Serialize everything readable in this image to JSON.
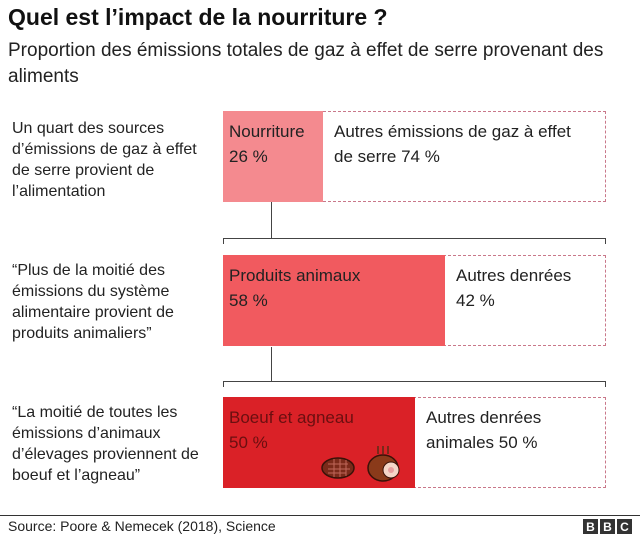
{
  "title": "Quel est l’impact de la nourriture ?",
  "subtitle": "Proportion des émissions totales de gaz à effet de serre provenant des aliments",
  "notes": [
    "Un quart des sources d’émissions de gaz à effet de serre provient de l’alimentation",
    "“Plus de la moitié des émissions du système alimentaire provient de produits animaliers”",
    "“La moitié de toutes les émissions d’animaux d’élevages proviennent de boeuf et l’agneau”"
  ],
  "chart_data": {
    "type": "bar",
    "stacked": true,
    "rows": [
      {
        "highlight": {
          "label": "Nourriture",
          "value_text": "26 %",
          "value": 26,
          "color": "#f48a8f"
        },
        "rest": {
          "label": "Autres émissions de gaz à effet de serre 74 %",
          "value": 74
        }
      },
      {
        "highlight": {
          "label": "Produits animaux",
          "value_text": "58 %",
          "value": 58,
          "color": "#f15a5f"
        },
        "rest": {
          "label": "Autres denrées",
          "value_text": "42 %",
          "value": 42
        }
      },
      {
        "highlight": {
          "label": "Boeuf et agneau",
          "value_text": "50 %",
          "value": 50,
          "color": "#da2127"
        },
        "rest": {
          "label": "Autres denrées animales 50 %",
          "value": 50
        }
      }
    ]
  },
  "icons": [
    "steak-icon",
    "lamb-rack-icon"
  ],
  "source": "Source: Poore & Nemecek (2018), Science",
  "logo": "BBC"
}
